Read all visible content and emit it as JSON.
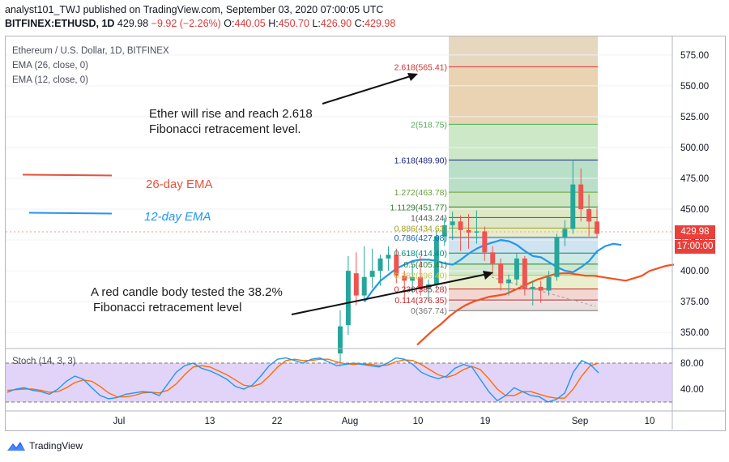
{
  "header": {
    "line1": "analyst101_TWJ published on TradingView.com, September 03, 2020 07:00:05 UTC",
    "symbol": "BITFINEX:ETHUSD, 1D",
    "last": "429.98",
    "change": "−9.92 (−2.26%)",
    "o_label": "O:",
    "o": "440.05",
    "h_label": "H:",
    "h": "450.70",
    "l_label": "L:",
    "l": "426.90",
    "c_label": "C:",
    "c": "429.98"
  },
  "legend": {
    "title": "Ethereum / U.S. Dollar, 1D, BITFINEX",
    "ema26": "EMA (26, close, 0)",
    "ema12": "EMA (12, close, 0)"
  },
  "annotations": {
    "rise_line1": "Ether will rise and reach 2.618",
    "rise_line2": "Fibonacci retracement level.",
    "tested_line1": "A red candle body tested the 38.2%",
    "tested_line2": "Fibonacci retracement level",
    "ema26_label": "26-day EMA",
    "ema12_label": "12-day EMA"
  },
  "price_tag": {
    "price": "429.98",
    "time": "17:00:00"
  },
  "stoch": {
    "label": "Stoch (14, 3, 3)"
  },
  "footer": {
    "brand": "TradingView"
  },
  "colors": {
    "up": "#26a69a",
    "down": "#ef5350",
    "ema26": "#f4511e",
    "ema12": "#2196f3",
    "stoch_k": "#2196f3",
    "stoch_d": "#ff6d00",
    "stoch_band": "#d8c5f5"
  },
  "chart_data": {
    "type": "candlestick",
    "y_axis_ticks": [
      "575.00",
      "550.00",
      "525.00",
      "500.00",
      "475.00",
      "450.00",
      "425.00",
      "400.00",
      "375.00",
      "350.00"
    ],
    "y_range": [
      337,
      590
    ],
    "x_ticks": [
      "Jul",
      "13",
      "22",
      "Aug",
      "10",
      "19",
      "Sep",
      "10"
    ],
    "candles": [
      {
        "o": 333,
        "h": 368,
        "l": 322,
        "c": 355
      },
      {
        "o": 356,
        "h": 412,
        "l": 348,
        "c": 400
      },
      {
        "o": 398,
        "h": 415,
        "l": 372,
        "c": 380
      },
      {
        "o": 380,
        "h": 420,
        "l": 375,
        "c": 395
      },
      {
        "o": 395,
        "h": 418,
        "l": 386,
        "c": 400
      },
      {
        "o": 400,
        "h": 413,
        "l": 388,
        "c": 410
      },
      {
        "o": 410,
        "h": 420,
        "l": 400,
        "c": 413
      },
      {
        "o": 413,
        "h": 418,
        "l": 390,
        "c": 396
      },
      {
        "o": 396,
        "h": 400,
        "l": 378,
        "c": 392
      },
      {
        "o": 392,
        "h": 405,
        "l": 382,
        "c": 395
      },
      {
        "o": 395,
        "h": 412,
        "l": 380,
        "c": 385
      },
      {
        "o": 385,
        "h": 393,
        "l": 375,
        "c": 389
      },
      {
        "o": 389,
        "h": 433,
        "l": 385,
        "c": 428
      },
      {
        "o": 428,
        "h": 443,
        "l": 420,
        "c": 437
      },
      {
        "o": 437,
        "h": 448,
        "l": 425,
        "c": 440
      },
      {
        "o": 440,
        "h": 445,
        "l": 416,
        "c": 433
      },
      {
        "o": 433,
        "h": 446,
        "l": 418,
        "c": 431
      },
      {
        "o": 431,
        "h": 449,
        "l": 422,
        "c": 432
      },
      {
        "o": 432,
        "h": 436,
        "l": 408,
        "c": 415
      },
      {
        "o": 415,
        "h": 420,
        "l": 397,
        "c": 406
      },
      {
        "o": 406,
        "h": 410,
        "l": 384,
        "c": 390
      },
      {
        "o": 390,
        "h": 397,
        "l": 380,
        "c": 393
      },
      {
        "o": 393,
        "h": 414,
        "l": 388,
        "c": 410
      },
      {
        "o": 410,
        "h": 412,
        "l": 380,
        "c": 385
      },
      {
        "o": 385,
        "h": 392,
        "l": 372,
        "c": 387
      },
      {
        "o": 387,
        "h": 392,
        "l": 374,
        "c": 384
      },
      {
        "o": 384,
        "h": 400,
        "l": 380,
        "c": 395
      },
      {
        "o": 395,
        "h": 430,
        "l": 392,
        "c": 427
      },
      {
        "o": 427,
        "h": 441,
        "l": 420,
        "c": 434
      },
      {
        "o": 434,
        "h": 490,
        "l": 430,
        "c": 470
      },
      {
        "o": 470,
        "h": 483,
        "l": 440,
        "c": 450
      },
      {
        "o": 450,
        "h": 462,
        "l": 428,
        "c": 440
      },
      {
        "o": 440,
        "h": 450.7,
        "l": 426.9,
        "c": 429.98
      }
    ],
    "ema12": [
      375,
      384,
      392,
      397,
      402,
      405,
      408,
      409,
      409,
      408,
      406,
      405,
      409,
      414,
      418,
      421,
      423,
      425,
      424,
      421,
      416,
      412,
      411,
      407,
      403,
      400,
      399,
      403,
      408,
      416,
      420,
      422,
      421
    ],
    "ema26": [
      340,
      346,
      352,
      357,
      363,
      368,
      372,
      375,
      377,
      379,
      380,
      381,
      384,
      387,
      390,
      393,
      395,
      397,
      398,
      398,
      397,
      396,
      396,
      395,
      394,
      393,
      392,
      394,
      396,
      400,
      402,
      404,
      405
    ],
    "fibonacci": [
      {
        "label": "2.618(565.41)",
        "price": 565.41,
        "color": "#d32f2f"
      },
      {
        "label": "2(518.75)",
        "price": 518.75,
        "color": "#4caf50"
      },
      {
        "label": "1.618(489.90)",
        "price": 489.9,
        "color": "#1a237e"
      },
      {
        "label": "1.272(463.78)",
        "price": 463.78,
        "color": "#689f38"
      },
      {
        "label": "1.1129(451.77)",
        "price": 451.77,
        "color": "#2e7d32"
      },
      {
        "label": "1(443.24)",
        "price": 443.24,
        "color": "#555555"
      },
      {
        "label": "0.886(434.63)",
        "price": 434.63,
        "color": "#9e9d24"
      },
      {
        "label": "0.786(427.08)",
        "price": 427.08,
        "color": "#1565c0"
      },
      {
        "label": "0.618(414.40)",
        "price": 414.4,
        "color": "#00897b"
      },
      {
        "label": "0.5(405.41)",
        "price": 405.41,
        "color": "#2e7d32"
      },
      {
        "label": "0.382(396.40)",
        "price": 396.4,
        "color": "#c0ca33"
      },
      {
        "label": "0.236(385.28)",
        "price": 385.28,
        "color": "#c62828"
      },
      {
        "label": "0.114(376.35)",
        "price": 376.35,
        "color": "#c62828"
      },
      {
        "label": "0(367.74)",
        "price": 367.74,
        "color": "#757575"
      }
    ],
    "stoch_ticks": [
      "80.00",
      "40.00"
    ],
    "stoch_range": [
      0,
      100
    ],
    "stoch_bands": [
      20,
      80
    ],
    "stoch_k": [
      35,
      40,
      42,
      38,
      36,
      32,
      40,
      52,
      60,
      55,
      42,
      30,
      25,
      27,
      32,
      34,
      36,
      35,
      30,
      48,
      66,
      76,
      80,
      72,
      68,
      62,
      55,
      44,
      40,
      46,
      60,
      76,
      86,
      88,
      84,
      80,
      86,
      88,
      82,
      76,
      78,
      80,
      78,
      76,
      74,
      80,
      88,
      86,
      78,
      66,
      60,
      56,
      60,
      72,
      78,
      74,
      55,
      36,
      22,
      30,
      42,
      36,
      30,
      28,
      20,
      24,
      34,
      66,
      84,
      78,
      65
    ],
    "stoch_d": [
      38,
      39,
      40,
      40,
      38,
      35,
      36,
      42,
      50,
      54,
      52,
      44,
      34,
      28,
      28,
      30,
      34,
      35,
      34,
      38,
      48,
      62,
      74,
      76,
      74,
      68,
      62,
      54,
      46,
      44,
      48,
      60,
      74,
      84,
      86,
      84,
      84,
      86,
      86,
      82,
      79,
      78,
      79,
      78,
      76,
      77,
      82,
      85,
      84,
      78,
      70,
      62,
      58,
      62,
      70,
      75,
      70,
      56,
      40,
      30,
      30,
      36,
      36,
      32,
      28,
      26,
      26,
      40,
      60,
      76,
      80
    ]
  }
}
